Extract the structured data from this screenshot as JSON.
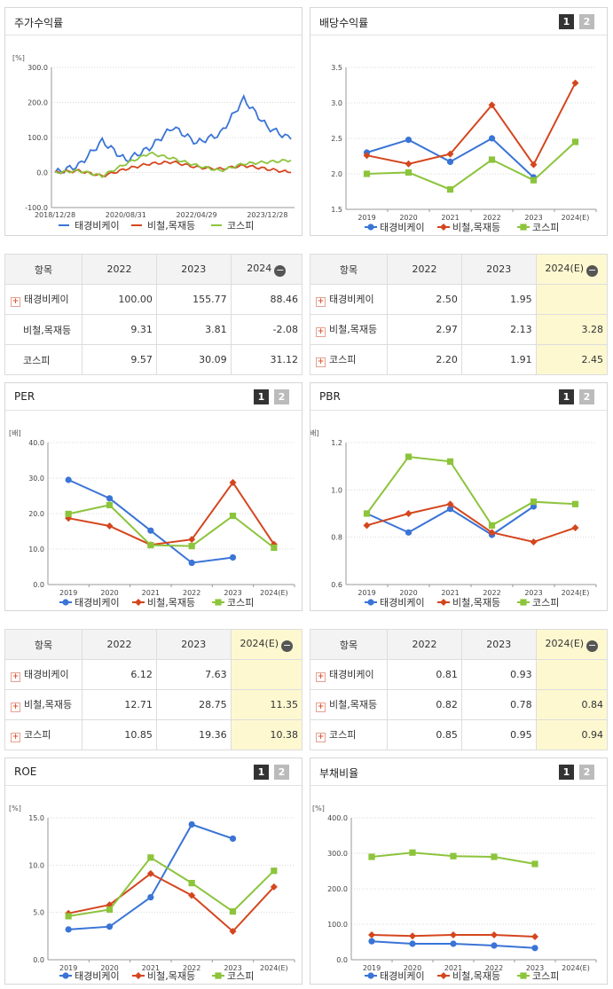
{
  "legend": {
    "s1": "태경비케이",
    "s2": "비철,목재등",
    "s3": "코스피"
  },
  "colors": {
    "s1": "#3a74d6",
    "s2": "#d4461e",
    "s3": "#8cc43c"
  },
  "minus_glyph": "−",
  "plus_glyph": "+",
  "panels": {
    "price": {
      "title": "주가수익률",
      "unit": "[%]",
      "yticks": [
        "300.0",
        "200.0",
        "100.0",
        "0.0",
        "-100.0"
      ],
      "xticks": [
        "2018/12/28",
        "2020/08/31",
        "2022/04/29",
        "2023/12/28"
      ]
    },
    "dividend": {
      "title": "배당수익률",
      "btn1": "1",
      "btn2": "2",
      "unit": "",
      "yticks": [
        "3.5",
        "3.0",
        "2.5",
        "2.0",
        "1.5"
      ]
    },
    "per": {
      "title": "PER",
      "btn1": "1",
      "btn2": "2",
      "unit": "[배]",
      "yticks": [
        "40.0",
        "30.0",
        "20.0",
        "10.0",
        "0.0"
      ]
    },
    "pbr": {
      "title": "PBR",
      "btn1": "1",
      "btn2": "2",
      "unit": "[배]",
      "yticks": [
        "1.2",
        "1.0",
        "0.8",
        "0.6"
      ]
    },
    "roe": {
      "title": "ROE",
      "btn1": "1",
      "btn2": "2",
      "unit": "[%]",
      "yticks": [
        "15.0",
        "10.0",
        "5.0",
        "0.0"
      ]
    },
    "debt": {
      "title": "부채비율",
      "btn1": "1",
      "btn2": "2",
      "unit": "[%]",
      "yticks": [
        "400.0",
        "300.0",
        "200.0",
        "100.0",
        "0.0"
      ]
    }
  },
  "xyears": [
    "2019",
    "2020",
    "2021",
    "2022",
    "2023",
    "2024(E)"
  ],
  "tables": {
    "price": {
      "headers": [
        "항목",
        "2022",
        "2023",
        "2024"
      ],
      "rows": [
        [
          "태경비케이",
          "100.00",
          "155.77",
          "88.46"
        ],
        [
          "비철,목재등",
          "9.31",
          "3.81",
          "-2.08"
        ],
        [
          "코스피",
          "9.57",
          "30.09",
          "31.12"
        ]
      ]
    },
    "dividend": {
      "headers": [
        "항목",
        "2022",
        "2023",
        "2024(E)"
      ],
      "rows": [
        [
          "태경비케이",
          "2.50",
          "1.95",
          ""
        ],
        [
          "비철,목재등",
          "2.97",
          "2.13",
          "3.28"
        ],
        [
          "코스피",
          "2.20",
          "1.91",
          "2.45"
        ]
      ]
    },
    "per": {
      "headers": [
        "항목",
        "2022",
        "2023",
        "2024(E)"
      ],
      "rows": [
        [
          "태경비케이",
          "6.12",
          "7.63",
          ""
        ],
        [
          "비철,목재등",
          "12.71",
          "28.75",
          "11.35"
        ],
        [
          "코스피",
          "10.85",
          "19.36",
          "10.38"
        ]
      ]
    },
    "pbr": {
      "headers": [
        "항목",
        "2022",
        "2023",
        "2024(E)"
      ],
      "rows": [
        [
          "태경비케이",
          "0.81",
          "0.93",
          ""
        ],
        [
          "비철,목재등",
          "0.82",
          "0.78",
          "0.84"
        ],
        [
          "코스피",
          "0.85",
          "0.95",
          "0.94"
        ]
      ]
    }
  },
  "chart_data": [
    {
      "type": "line",
      "title": "주가수익률",
      "ylabel": "[%]",
      "ylim": [
        -100,
        300
      ],
      "x": [
        "2018/12/28",
        "2019/07",
        "2020/01",
        "2020/08/31",
        "2021/03",
        "2021/10",
        "2022/04/29",
        "2022/11",
        "2023/06",
        "2023/12/28",
        "2024/06"
      ],
      "series": [
        {
          "name": "태경비케이",
          "values": [
            0,
            20,
            90,
            35,
            70,
            130,
            85,
            110,
            210,
            130,
            95
          ]
        },
        {
          "name": "비철,목재등",
          "values": [
            0,
            5,
            -10,
            10,
            25,
            30,
            15,
            10,
            20,
            10,
            0
          ]
        },
        {
          "name": "코스피",
          "values": [
            0,
            5,
            -10,
            25,
            55,
            40,
            20,
            5,
            25,
            30,
            35
          ]
        }
      ]
    },
    {
      "type": "line",
      "title": "배당수익률",
      "ylim": [
        1.5,
        3.5
      ],
      "x": [
        "2019",
        "2020",
        "2021",
        "2022",
        "2023",
        "2024(E)"
      ],
      "series": [
        {
          "name": "태경비케이",
          "values": [
            2.3,
            2.48,
            2.17,
            2.5,
            1.95,
            null
          ]
        },
        {
          "name": "비철,목재등",
          "values": [
            2.26,
            2.14,
            2.28,
            2.97,
            2.13,
            3.28
          ]
        },
        {
          "name": "코스피",
          "values": [
            2.0,
            2.02,
            1.78,
            2.2,
            1.91,
            2.45
          ]
        }
      ]
    },
    {
      "type": "line",
      "title": "PER",
      "ylabel": "[배]",
      "ylim": [
        0,
        40
      ],
      "x": [
        "2019",
        "2020",
        "2021",
        "2022",
        "2023",
        "2024(E)"
      ],
      "series": [
        {
          "name": "태경비케이",
          "values": [
            29.5,
            24.3,
            15.2,
            6.12,
            7.63,
            null
          ]
        },
        {
          "name": "비철,목재등",
          "values": [
            18.7,
            16.5,
            11.2,
            12.71,
            28.75,
            11.35
          ]
        },
        {
          "name": "코스피",
          "values": [
            19.9,
            22.4,
            11.1,
            10.85,
            19.36,
            10.38
          ]
        }
      ]
    },
    {
      "type": "line",
      "title": "PBR",
      "ylabel": "[배]",
      "ylim": [
        0.6,
        1.2
      ],
      "x": [
        "2019",
        "2020",
        "2021",
        "2022",
        "2023",
        "2024(E)"
      ],
      "series": [
        {
          "name": "태경비케이",
          "values": [
            0.9,
            0.82,
            0.92,
            0.81,
            0.93,
            null
          ]
        },
        {
          "name": "비철,목재등",
          "values": [
            0.85,
            0.9,
            0.94,
            0.82,
            0.78,
            0.84
          ]
        },
        {
          "name": "코스피",
          "values": [
            0.9,
            1.14,
            1.12,
            0.85,
            0.95,
            0.94
          ]
        }
      ]
    },
    {
      "type": "line",
      "title": "ROE",
      "ylabel": "[%]",
      "ylim": [
        0,
        15
      ],
      "x": [
        "2019",
        "2020",
        "2021",
        "2022",
        "2023",
        "2024(E)"
      ],
      "series": [
        {
          "name": "태경비케이",
          "values": [
            3.2,
            3.5,
            6.6,
            14.3,
            12.8,
            null
          ]
        },
        {
          "name": "비철,목재등",
          "values": [
            4.9,
            5.8,
            9.1,
            6.8,
            3.0,
            7.7
          ]
        },
        {
          "name": "코스피",
          "values": [
            4.6,
            5.3,
            10.8,
            8.1,
            5.1,
            9.4
          ]
        }
      ]
    },
    {
      "type": "line",
      "title": "부채비율",
      "ylabel": "[%]",
      "ylim": [
        0,
        400
      ],
      "x": [
        "2019",
        "2020",
        "2021",
        "2022",
        "2023",
        "2024(E)"
      ],
      "series": [
        {
          "name": "태경비케이",
          "values": [
            52,
            45,
            45,
            40,
            33,
            null
          ]
        },
        {
          "name": "비철,목재등",
          "values": [
            70,
            67,
            70,
            70,
            65,
            null
          ]
        },
        {
          "name": "코스피",
          "values": [
            290,
            302,
            292,
            290,
            270,
            null
          ]
        }
      ]
    }
  ]
}
